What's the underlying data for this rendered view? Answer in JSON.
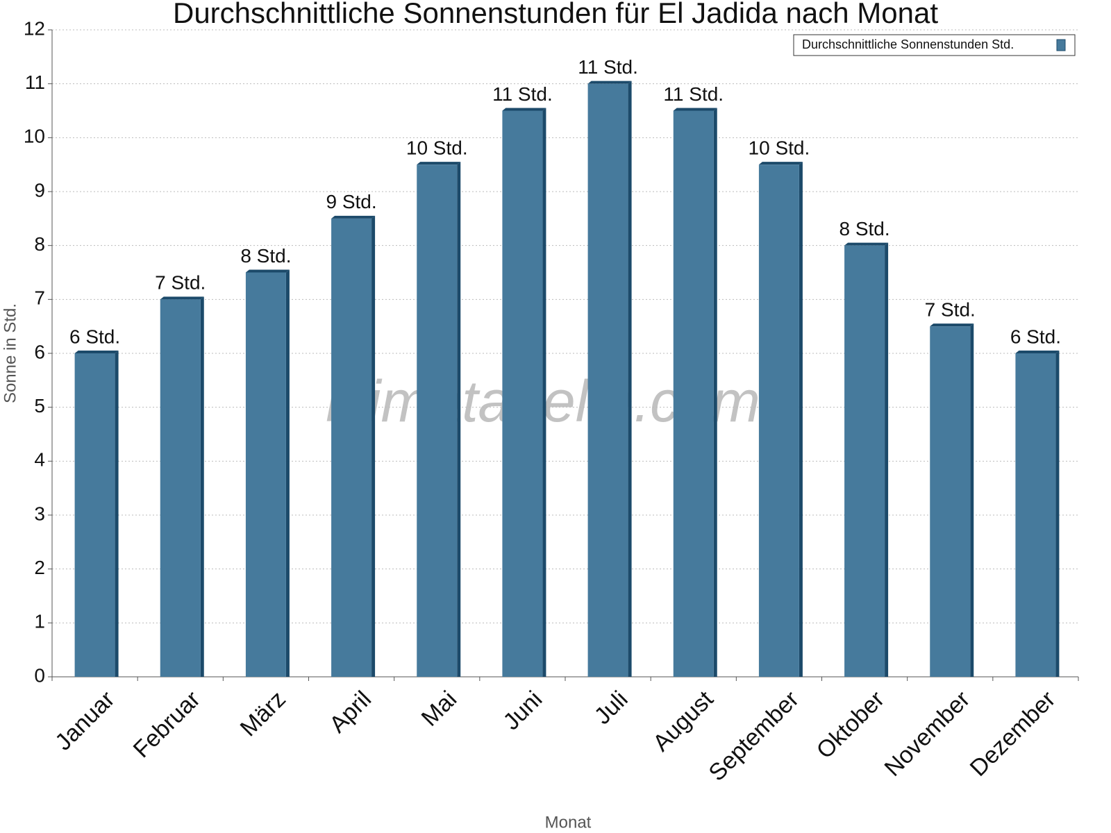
{
  "chart_data": {
    "type": "bar",
    "title": "Durchschnittliche Sonnenstunden für El Jadida nach Monat",
    "x_label": "Monat",
    "y_label": "Sonne in Std.",
    "watermark": "klimatabelle.com",
    "categories": [
      "Januar",
      "Februar",
      "März",
      "April",
      "Mai",
      "Juni",
      "Juli",
      "August",
      "September",
      "Oktober",
      "November",
      "Dezember"
    ],
    "series": [
      {
        "name": "Durchschnittliche Sonnenstunden Std.",
        "color": "#467a9c",
        "values": [
          6,
          7,
          7.5,
          8.5,
          9.5,
          10.5,
          11,
          10.5,
          9.5,
          8,
          6.5,
          6
        ],
        "value_labels": [
          "6 Std.",
          "7 Std.",
          "8 Std.",
          "9 Std.",
          "10 Std.",
          "11 Std.",
          "11 Std.",
          "11 Std.",
          "10 Std.",
          "8 Std.",
          "7 Std.",
          "6 Std."
        ]
      }
    ],
    "ylim": [
      0,
      12
    ],
    "yticks": [
      0,
      1,
      2,
      3,
      4,
      5,
      6,
      7,
      8,
      9,
      10,
      11,
      12
    ],
    "grid": true,
    "legend": "top-right"
  }
}
